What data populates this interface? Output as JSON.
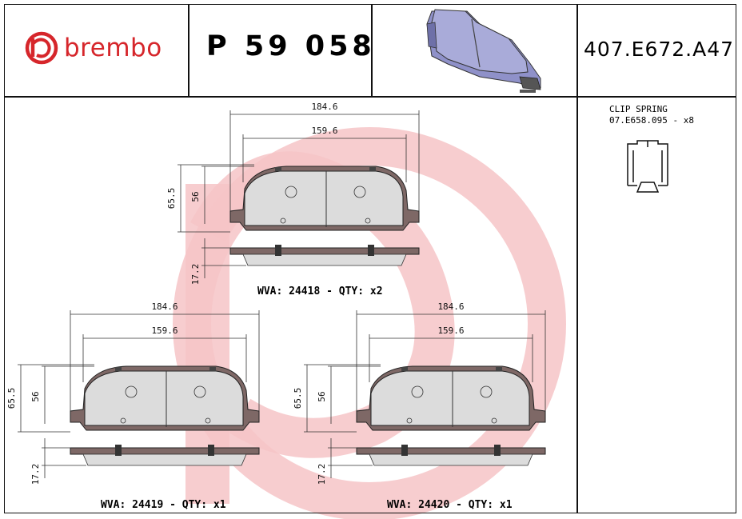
{
  "header": {
    "brand": "brembo",
    "part_number": "P 59 058",
    "reference": "407.E672.A47"
  },
  "clip_spring": {
    "title": "CLIP SPRING",
    "code": "07.E658.095 - x8"
  },
  "pads": [
    {
      "id": "top",
      "overall_width": "184.6",
      "inner_width": "159.6",
      "overall_height": "65.5",
      "inner_height": "56",
      "thickness": "17.2",
      "wva": "WVA: 24418 - QTY: x2"
    },
    {
      "id": "bottom-left",
      "overall_width": "184.6",
      "inner_width": "159.6",
      "overall_height": "65.5",
      "inner_height": "56",
      "thickness": "17.2",
      "wva": "WVA: 24419 - QTY: x1"
    },
    {
      "id": "bottom-right",
      "overall_width": "184.6",
      "inner_width": "159.6",
      "overall_height": "65.5",
      "inner_height": "56",
      "thickness": "17.2",
      "wva": "WVA: 24420 - QTY: x1"
    }
  ],
  "colors": {
    "brand_red": "#d6262b",
    "watermark": "#f3b9bd",
    "backing_plate": "#7e6866",
    "friction_material": "#dcdcdc",
    "render_blue": "#a9abd9"
  }
}
